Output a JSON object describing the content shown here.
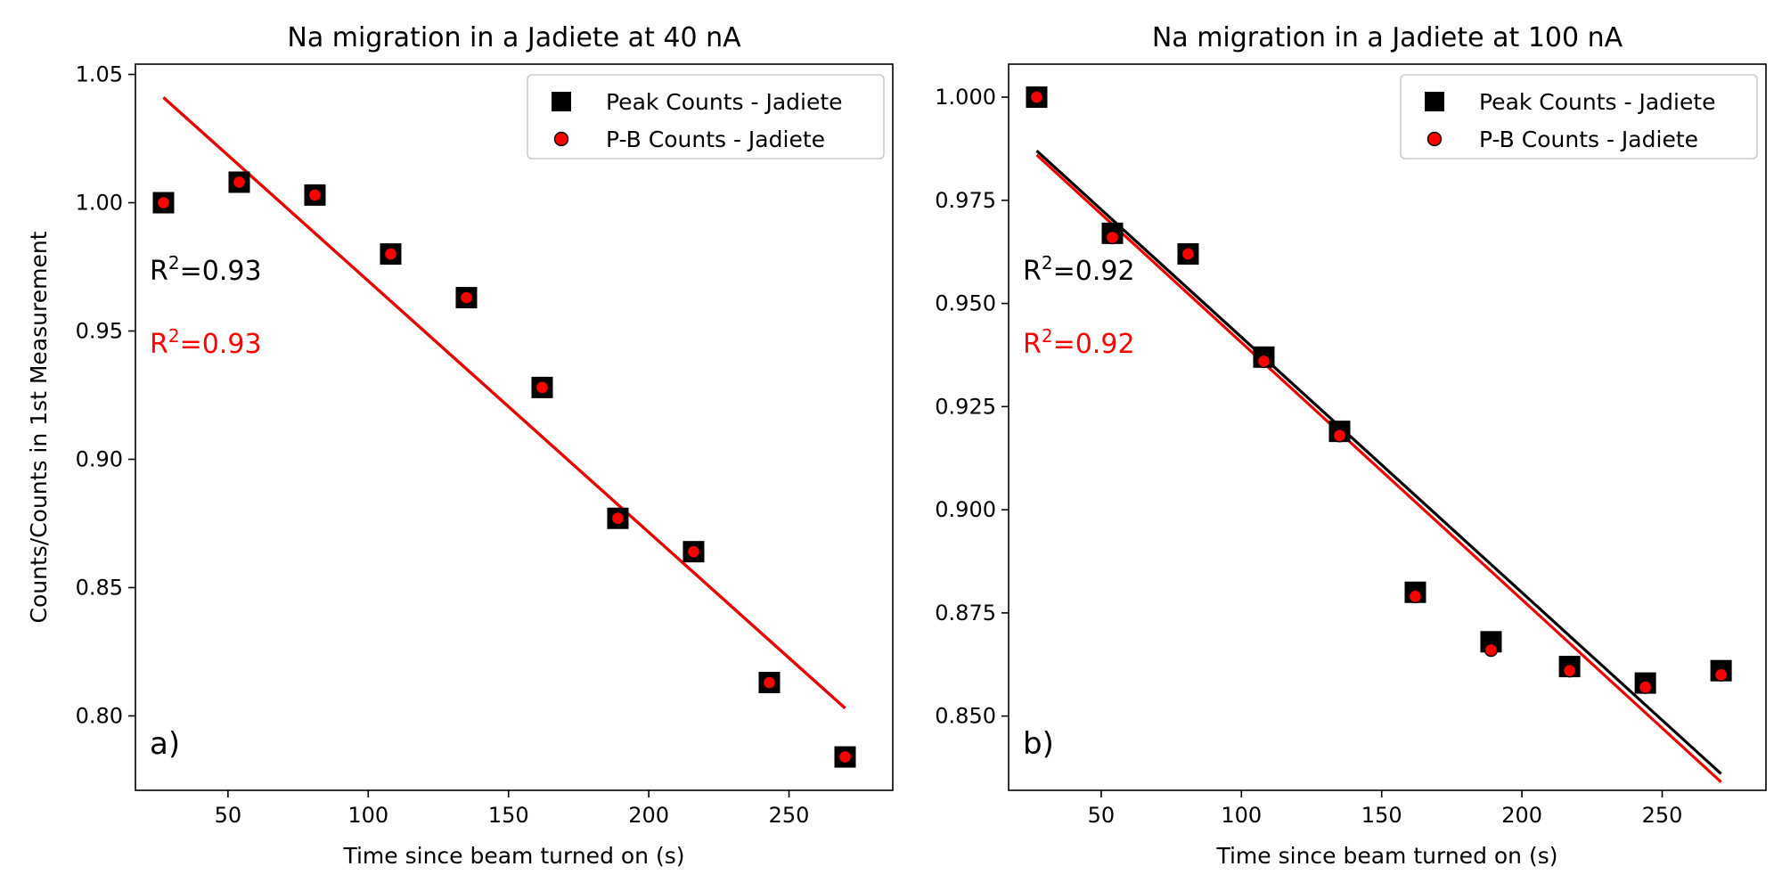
{
  "colors": {
    "peak": "#000000",
    "pb": "#ff0000",
    "fit_peak": "#000000",
    "fit_pb": "#ee0000"
  },
  "chart_data": [
    {
      "type": "scatter",
      "title": "Na migration in a Jadiete at 40 nA",
      "xlabel": "Time since beam turned on (s)",
      "ylabel": "Counts/Counts in 1st Measurement",
      "xlim": [
        17,
        287
      ],
      "ylim": [
        0.771,
        1.054
      ],
      "xticks": [
        50,
        100,
        150,
        200,
        250
      ],
      "xtick_labels": [
        "50",
        "100",
        "150",
        "200",
        "250"
      ],
      "yticks": [
        0.8,
        0.85,
        0.9,
        0.95,
        1.0,
        1.05
      ],
      "ytick_labels": [
        "0.80",
        "0.85",
        "0.90",
        "0.95",
        "1.00",
        "1.05"
      ],
      "panel_label": "a)",
      "legend": {
        "location": "top-right",
        "entries": [
          "Peak Counts - Jadiete",
          "P-B Counts - Jadiete"
        ]
      },
      "annotations": {
        "r2_peak": {
          "prefix": "R",
          "sup": "2",
          "value": "=0.93"
        },
        "r2_pb": {
          "prefix": "R",
          "sup": "2",
          "value": "=0.93"
        }
      },
      "x": [
        27,
        54,
        81,
        108,
        135,
        162,
        189,
        216,
        243,
        270
      ],
      "series": [
        {
          "name": "Peak Counts - Jadiete",
          "marker": "square",
          "values": [
            1.0,
            1.008,
            1.003,
            0.98,
            0.963,
            0.928,
            0.877,
            0.864,
            0.813,
            0.784
          ]
        },
        {
          "name": "P-B Counts - Jadiete",
          "marker": "circle",
          "values": [
            1.0,
            1.008,
            1.003,
            0.98,
            0.963,
            0.928,
            0.877,
            0.864,
            0.813,
            0.784
          ]
        }
      ],
      "fit_lines": [
        {
          "of": "Peak Counts - Jadiete",
          "x": [
            27,
            270
          ],
          "y": [
            1.041,
            0.803
          ]
        },
        {
          "of": "P-B Counts - Jadiete",
          "x": [
            27,
            270
          ],
          "y": [
            1.041,
            0.803
          ]
        }
      ]
    },
    {
      "type": "scatter",
      "title": "Na migration in a Jadiete at 100 nA",
      "xlabel": "Time since beam turned on (s)",
      "ylabel": "",
      "xlim": [
        17,
        287
      ],
      "ylim": [
        0.832,
        1.008
      ],
      "xticks": [
        50,
        100,
        150,
        200,
        250
      ],
      "xtick_labels": [
        "50",
        "100",
        "150",
        "200",
        "250"
      ],
      "yticks": [
        0.85,
        0.875,
        0.9,
        0.925,
        0.95,
        0.975,
        1.0
      ],
      "ytick_labels": [
        "0.850",
        "0.875",
        "0.900",
        "0.925",
        "0.950",
        "0.975",
        "1.000"
      ],
      "panel_label": "b)",
      "legend": {
        "location": "top-right",
        "entries": [
          "Peak Counts - Jadiete",
          "P-B Counts - Jadiete"
        ]
      },
      "annotations": {
        "r2_peak": {
          "prefix": "R",
          "sup": "2",
          "value": "=0.92"
        },
        "r2_pb": {
          "prefix": "R",
          "sup": "2",
          "value": "=0.92"
        }
      },
      "x": [
        27,
        54,
        81,
        108,
        135,
        162,
        189,
        217,
        244,
        271
      ],
      "series": [
        {
          "name": "Peak Counts - Jadiete",
          "marker": "square",
          "values": [
            1.0,
            0.967,
            0.962,
            0.937,
            0.919,
            0.88,
            0.868,
            0.862,
            0.858,
            0.861
          ]
        },
        {
          "name": "P-B Counts - Jadiete",
          "marker": "circle",
          "values": [
            1.0,
            0.966,
            0.962,
            0.936,
            0.918,
            0.879,
            0.866,
            0.861,
            0.857,
            0.86
          ]
        }
      ],
      "fit_lines": [
        {
          "of": "Peak Counts - Jadiete",
          "x": [
            27,
            271
          ],
          "y": [
            0.987,
            0.836
          ]
        },
        {
          "of": "P-B Counts - Jadiete",
          "x": [
            27,
            271
          ],
          "y": [
            0.986,
            0.834
          ]
        }
      ]
    }
  ]
}
